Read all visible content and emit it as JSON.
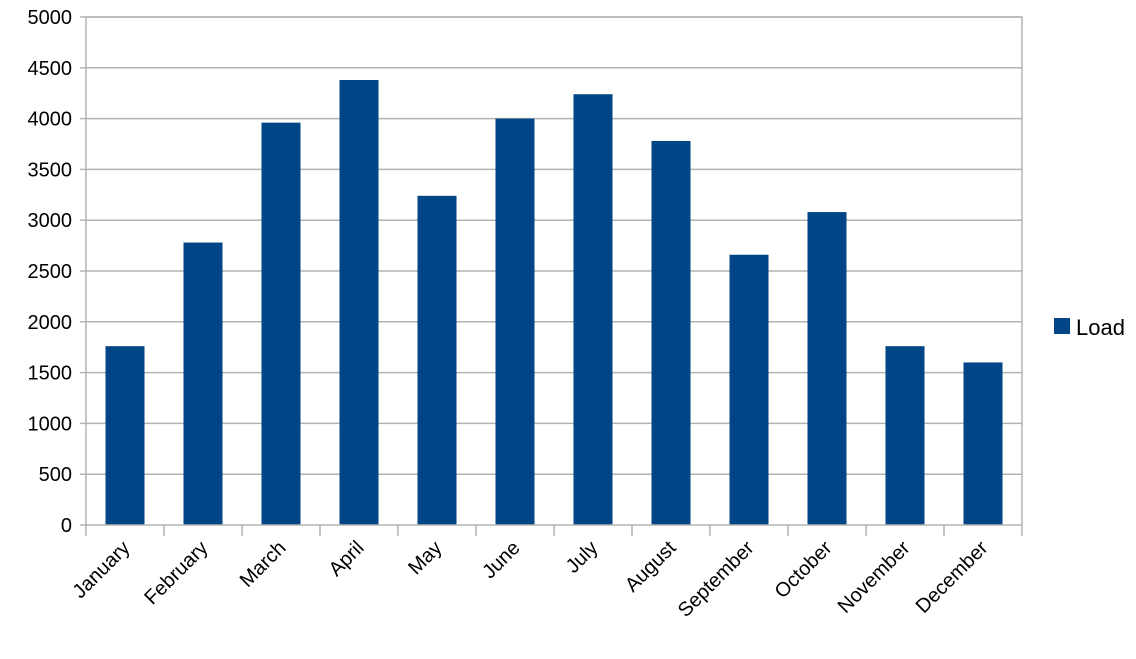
{
  "chart_data": {
    "type": "bar",
    "title": "",
    "xlabel": "",
    "ylabel": "",
    "categories": [
      "January",
      "February",
      "March",
      "April",
      "May",
      "June",
      "July",
      "August",
      "September",
      "October",
      "November",
      "December"
    ],
    "series": [
      {
        "name": "Load",
        "color": "#004586",
        "values": [
          1760,
          2780,
          3960,
          4380,
          3240,
          4000,
          4240,
          3780,
          2660,
          3080,
          1760,
          1600
        ]
      }
    ],
    "ylim": [
      0,
      5000
    ],
    "yticks": [
      0,
      500,
      1000,
      1500,
      2000,
      2500,
      3000,
      3500,
      4000,
      4500,
      5000
    ],
    "grid": true,
    "legend_position": "right"
  }
}
